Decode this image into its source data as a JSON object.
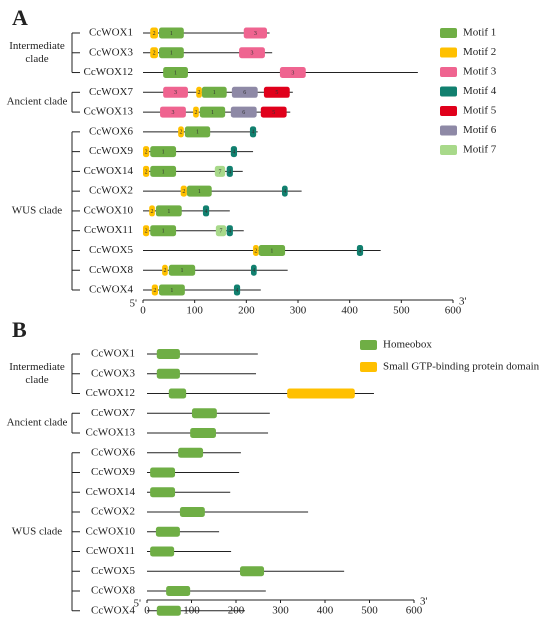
{
  "chart_data": [
    {
      "type": "motif",
      "panel": "A",
      "xlim": [
        0,
        600
      ],
      "xticks": [
        0,
        100,
        200,
        300,
        400,
        500,
        600
      ],
      "start_label": "5'",
      "end_label": "3'",
      "motifs": [
        {
          "name": "Motif 1",
          "label": "1",
          "color": "#6fae45"
        },
        {
          "name": "Motif 2",
          "label": "2",
          "color": "#ffc000"
        },
        {
          "name": "Motif 3",
          "label": "3",
          "color": "#ef6490"
        },
        {
          "name": "Motif 4",
          "label": "4",
          "color": "#11806f"
        },
        {
          "name": "Motif 5",
          "label": "5",
          "color": "#e0001b"
        },
        {
          "name": "Motif 6",
          "label": "6",
          "color": "#8e89a6"
        },
        {
          "name": "Motif 7",
          "label": "7",
          "color": "#a8d98a"
        }
      ],
      "clades": [
        {
          "label_lines": [
            "Intermediate",
            "clade"
          ],
          "genes": [
            {
              "name": "CcWOX1",
              "length": 245,
              "features": [
                {
                  "motif": 1,
                  "start": 14,
                  "end": 29
                },
                {
                  "motif": 0,
                  "start": 31,
                  "end": 79
                },
                {
                  "motif": 2,
                  "start": 195,
                  "end": 240
                }
              ]
            },
            {
              "name": "CcWOX3",
              "length": 250,
              "features": [
                {
                  "motif": 1,
                  "start": 14,
                  "end": 29
                },
                {
                  "motif": 0,
                  "start": 31,
                  "end": 79
                },
                {
                  "motif": 2,
                  "start": 186,
                  "end": 236
                }
              ]
            },
            {
              "name": "CcWOX12",
              "length": 532,
              "features": [
                {
                  "motif": 0,
                  "start": 39,
                  "end": 87
                },
                {
                  "motif": 2,
                  "start": 265,
                  "end": 315
                }
              ]
            }
          ]
        },
        {
          "label_lines": [
            "Ancient clade"
          ],
          "genes": [
            {
              "name": "CcWOX7",
              "length": 290,
              "features": [
                {
                  "motif": 2,
                  "start": 39,
                  "end": 87
                },
                {
                  "motif": 1,
                  "start": 103,
                  "end": 114
                },
                {
                  "motif": 0,
                  "start": 114,
                  "end": 162
                },
                {
                  "motif": 5,
                  "start": 172,
                  "end": 222
                },
                {
                  "motif": 4,
                  "start": 234,
                  "end": 284
                }
              ]
            },
            {
              "name": "CcWOX13",
              "length": 285,
              "features": [
                {
                  "motif": 2,
                  "start": 33,
                  "end": 83
                },
                {
                  "motif": 1,
                  "start": 97,
                  "end": 108
                },
                {
                  "motif": 0,
                  "start": 110,
                  "end": 159
                },
                {
                  "motif": 5,
                  "start": 170,
                  "end": 220
                },
                {
                  "motif": 4,
                  "start": 228,
                  "end": 278
                }
              ]
            }
          ]
        },
        {
          "label_lines": [
            "WUS clade"
          ],
          "genes": [
            {
              "name": "CcWOX6",
              "length": 222,
              "features": [
                {
                  "motif": 1,
                  "start": 68,
                  "end": 79
                },
                {
                  "motif": 0,
                  "start": 81,
                  "end": 130
                },
                {
                  "motif": 3,
                  "start": 207,
                  "end": 219
                }
              ]
            },
            {
              "name": "CcWOX9",
              "length": 213,
              "features": [
                {
                  "motif": 1,
                  "start": 0,
                  "end": 12
                },
                {
                  "motif": 0,
                  "start": 14,
                  "end": 64
                },
                {
                  "motif": 3,
                  "start": 170,
                  "end": 182
                }
              ]
            },
            {
              "name": "CcWOX14",
              "length": 193,
              "features": [
                {
                  "motif": 1,
                  "start": 0,
                  "end": 12
                },
                {
                  "motif": 0,
                  "start": 14,
                  "end": 64
                },
                {
                  "motif": 6,
                  "start": 139,
                  "end": 159
                },
                {
                  "motif": 3,
                  "start": 162,
                  "end": 174
                }
              ]
            },
            {
              "name": "CcWOX2",
              "length": 307,
              "features": [
                {
                  "motif": 1,
                  "start": 73,
                  "end": 85
                },
                {
                  "motif": 0,
                  "start": 85,
                  "end": 133
                },
                {
                  "motif": 3,
                  "start": 269,
                  "end": 280
                }
              ]
            },
            {
              "name": "CcWOX10",
              "length": 168,
              "features": [
                {
                  "motif": 1,
                  "start": 12,
                  "end": 23
                },
                {
                  "motif": 0,
                  "start": 25,
                  "end": 75
                },
                {
                  "motif": 3,
                  "start": 116,
                  "end": 128
                }
              ]
            },
            {
              "name": "CcWOX11",
              "length": 195,
              "features": [
                {
                  "motif": 1,
                  "start": 0,
                  "end": 12
                },
                {
                  "motif": 0,
                  "start": 14,
                  "end": 64
                },
                {
                  "motif": 6,
                  "start": 141,
                  "end": 161
                },
                {
                  "motif": 3,
                  "start": 162,
                  "end": 174
                }
              ]
            },
            {
              "name": "CcWOX5",
              "length": 460,
              "features": [
                {
                  "motif": 1,
                  "start": 213,
                  "end": 224
                },
                {
                  "motif": 0,
                  "start": 224,
                  "end": 275
                },
                {
                  "motif": 3,
                  "start": 414,
                  "end": 426
                }
              ]
            },
            {
              "name": "CcWOX8",
              "length": 280,
              "features": [
                {
                  "motif": 1,
                  "start": 37,
                  "end": 48
                },
                {
                  "motif": 0,
                  "start": 50,
                  "end": 101
                },
                {
                  "motif": 3,
                  "start": 209,
                  "end": 220
                }
              ]
            },
            {
              "name": "CcWOX4",
              "length": 228,
              "features": [
                {
                  "motif": 1,
                  "start": 17,
                  "end": 29
                },
                {
                  "motif": 0,
                  "start": 31,
                  "end": 81
                },
                {
                  "motif": 3,
                  "start": 176,
                  "end": 188
                }
              ]
            }
          ]
        }
      ]
    },
    {
      "type": "domain",
      "panel": "B",
      "xlim": [
        0,
        600
      ],
      "xticks": [
        0,
        100,
        200,
        300,
        400,
        500,
        600
      ],
      "start_label": "5'",
      "end_label": "3'",
      "motifs": [
        {
          "name": "Homeobox",
          "color": "#6fae45"
        },
        {
          "name": "Small GTP-binding protein domain",
          "color": "#ffc000"
        }
      ],
      "clades": [
        {
          "label_lines": [
            "Intermediate",
            "clade"
          ],
          "genes": [
            {
              "name": "CcWOX1",
              "length": 249,
              "features": [
                {
                  "motif": 0,
                  "start": 22,
                  "end": 74
                }
              ]
            },
            {
              "name": "CcWOX3",
              "length": 245,
              "features": [
                {
                  "motif": 0,
                  "start": 22,
                  "end": 74
                }
              ]
            },
            {
              "name": "CcWOX12",
              "length": 510,
              "features": [
                {
                  "motif": 0,
                  "start": 49,
                  "end": 88
                },
                {
                  "motif": 1,
                  "start": 315,
                  "end": 467
                }
              ]
            }
          ]
        },
        {
          "label_lines": [
            "Ancient clade"
          ],
          "genes": [
            {
              "name": "CcWOX7",
              "length": 276,
              "features": [
                {
                  "motif": 0,
                  "start": 101,
                  "end": 157
                }
              ]
            },
            {
              "name": "CcWOX13",
              "length": 272,
              "features": [
                {
                  "motif": 0,
                  "start": 97,
                  "end": 155
                }
              ]
            }
          ]
        },
        {
          "label_lines": [
            "WUS clade"
          ],
          "genes": [
            {
              "name": "CcWOX6",
              "length": 211,
              "features": [
                {
                  "motif": 0,
                  "start": 70,
                  "end": 126
                }
              ]
            },
            {
              "name": "CcWOX9",
              "length": 207,
              "features": [
                {
                  "motif": 0,
                  "start": 7,
                  "end": 63
                }
              ]
            },
            {
              "name": "CcWOX14",
              "length": 187,
              "features": [
                {
                  "motif": 0,
                  "start": 7,
                  "end": 63
                }
              ]
            },
            {
              "name": "CcWOX2",
              "length": 362,
              "features": [
                {
                  "motif": 0,
                  "start": 74,
                  "end": 130
                }
              ]
            },
            {
              "name": "CcWOX10",
              "length": 162,
              "features": [
                {
                  "motif": 0,
                  "start": 20,
                  "end": 74
                }
              ]
            },
            {
              "name": "CcWOX11",
              "length": 189,
              "features": [
                {
                  "motif": 0,
                  "start": 7,
                  "end": 61
                }
              ]
            },
            {
              "name": "CcWOX5",
              "length": 443,
              "features": [
                {
                  "motif": 0,
                  "start": 209,
                  "end": 263
                }
              ]
            },
            {
              "name": "CcWOX8",
              "length": 267,
              "features": [
                {
                  "motif": 0,
                  "start": 43,
                  "end": 97
                }
              ]
            },
            {
              "name": "CcWOX4",
              "length": 220,
              "features": [
                {
                  "motif": 0,
                  "start": 22,
                  "end": 76
                }
              ]
            }
          ]
        }
      ]
    }
  ]
}
